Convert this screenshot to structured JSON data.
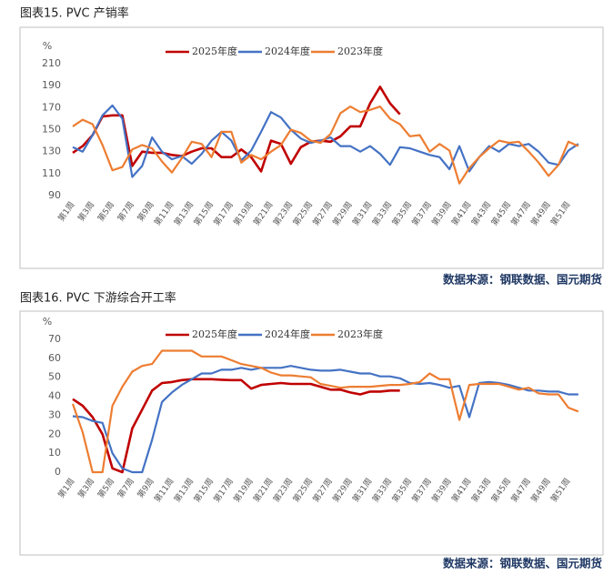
{
  "chart_data": [
    {
      "type": "line",
      "title": "图表15. PVC 产销率",
      "y_unit": "%",
      "source": "数据来源：钢联数据、国元期货",
      "legend": "top",
      "grid": false,
      "categories": [
        "第1周",
        null,
        "第3周",
        null,
        "第5周",
        null,
        "第7周",
        null,
        "第9周",
        null,
        "第11周",
        null,
        "第13周",
        null,
        "第15周",
        null,
        "第17周",
        null,
        "第19周",
        null,
        "第21周",
        null,
        "第23周",
        null,
        "第25周",
        null,
        "第27周",
        null,
        "第29周",
        null,
        "第31周",
        null,
        "第33周",
        null,
        "第35周",
        null,
        "第37周",
        null,
        "第39周",
        null,
        "第41周",
        null,
        "第43周",
        null,
        "第45周",
        null,
        "第47周",
        null,
        "第49周",
        null,
        "第51周",
        null
      ],
      "ylim": [
        90,
        210
      ],
      "yticks": [
        90,
        110,
        130,
        150,
        170,
        190,
        210
      ],
      "series": [
        {
          "name": "2025年度",
          "color": "#c00000",
          "values": [
            129,
            135,
            145,
            162,
            163,
            163,
            117,
            130,
            129,
            129,
            127,
            126,
            130,
            133,
            133,
            125,
            125,
            132,
            125,
            112,
            140,
            137,
            119,
            134,
            139,
            140,
            139,
            144,
            153,
            153,
            174,
            189,
            174,
            164,
            null,
            null,
            null,
            null,
            null,
            null,
            null,
            null,
            null,
            null,
            null,
            null,
            null,
            null,
            null,
            null,
            null,
            null
          ]
        },
        {
          "name": "2024年度",
          "color": "#4472c4",
          "values": [
            134,
            130,
            145,
            163,
            172,
            160,
            107,
            117,
            143,
            130,
            123,
            126,
            119,
            128,
            140,
            148,
            140,
            122,
            131,
            148,
            166,
            161,
            150,
            142,
            138,
            140,
            143,
            135,
            135,
            130,
            135,
            128,
            118,
            134,
            133,
            130,
            127,
            125,
            114,
            135,
            112,
            125,
            135,
            130,
            137,
            135,
            137,
            130,
            120,
            118,
            131,
            137
          ]
        },
        {
          "name": "2023年度",
          "color": "#ed7d31",
          "values": [
            153,
            159,
            155,
            136,
            113,
            116,
            132,
            136,
            133,
            121,
            111,
            124,
            139,
            137,
            125,
            148,
            148,
            120,
            127,
            123,
            130,
            136,
            150,
            147,
            140,
            138,
            146,
            165,
            171,
            166,
            168,
            171,
            160,
            155,
            144,
            145,
            130,
            137,
            131,
            101,
            115,
            125,
            133,
            140,
            138,
            139,
            130,
            120,
            108,
            118,
            139,
            135
          ]
        }
      ]
    },
    {
      "type": "line",
      "title": "图表16. PVC 下游综合开工率",
      "y_unit": "%",
      "source": "数据来源：钢联数据、国元期货",
      "legend": "top",
      "grid": false,
      "categories": [
        "第1周",
        null,
        "第3周",
        null,
        "第5周",
        null,
        "第7周",
        null,
        "第9周",
        null,
        "第11周",
        null,
        "第13周",
        null,
        "第15周",
        null,
        "第17周",
        null,
        "第19周",
        null,
        "第21周",
        null,
        "第23周",
        null,
        "第25周",
        null,
        "第27周",
        null,
        "第29周",
        null,
        "第31周",
        null,
        "第33周",
        null,
        "第35周",
        null,
        "第37周",
        null,
        "第39周",
        null,
        "第41周",
        null,
        "第43周",
        null,
        "第45周",
        null,
        "第47周",
        null,
        "第49周",
        null,
        "第51周",
        null
      ],
      "ylim": [
        0,
        70
      ],
      "yticks": [
        0,
        10,
        20,
        30,
        40,
        50,
        60,
        70
      ],
      "series": [
        {
          "name": "2025年度",
          "color": "#c00000",
          "values": [
            38.5,
            35,
            29,
            20,
            2,
            0,
            23,
            33,
            43,
            47,
            47.5,
            48.5,
            49,
            49,
            49,
            48.7,
            48.5,
            48.5,
            44,
            46,
            46.5,
            47,
            46.5,
            46.5,
            46.5,
            45,
            43.5,
            43.5,
            42,
            41,
            42.5,
            42.5,
            43,
            43,
            null,
            null,
            null,
            null,
            null,
            null,
            null,
            null,
            null,
            null,
            null,
            null,
            null,
            null,
            null,
            null,
            null,
            null
          ]
        },
        {
          "name": "2024年度",
          "color": "#4472c4",
          "values": [
            29.5,
            29,
            27,
            26,
            10,
            2,
            0,
            0,
            17,
            37,
            42,
            46,
            49,
            52,
            52,
            54,
            54,
            55,
            54,
            55,
            55,
            55,
            56,
            55,
            54,
            53.5,
            53.5,
            54,
            53,
            52,
            52,
            50.5,
            50.5,
            49.5,
            47,
            46.5,
            47,
            46,
            44.5,
            45.5,
            29,
            47,
            47.5,
            47,
            46,
            44.5,
            43,
            43,
            42.5,
            42.5,
            41,
            41
          ]
        },
        {
          "name": "2023年度",
          "color": "#ed7d31",
          "values": [
            36,
            21,
            0,
            0,
            35,
            45,
            53,
            56,
            57,
            64,
            64,
            64,
            64,
            61,
            61,
            61,
            59,
            57,
            56,
            55,
            52.5,
            51,
            51,
            50.5,
            50,
            46.5,
            45.5,
            44.5,
            45,
            45,
            45,
            45.5,
            46,
            46,
            46.5,
            47.5,
            52,
            49,
            49,
            27.5,
            46,
            46.5,
            46.5,
            46.5,
            45,
            43.5,
            44.5,
            41.5,
            41,
            41,
            34,
            32
          ]
        }
      ]
    }
  ]
}
